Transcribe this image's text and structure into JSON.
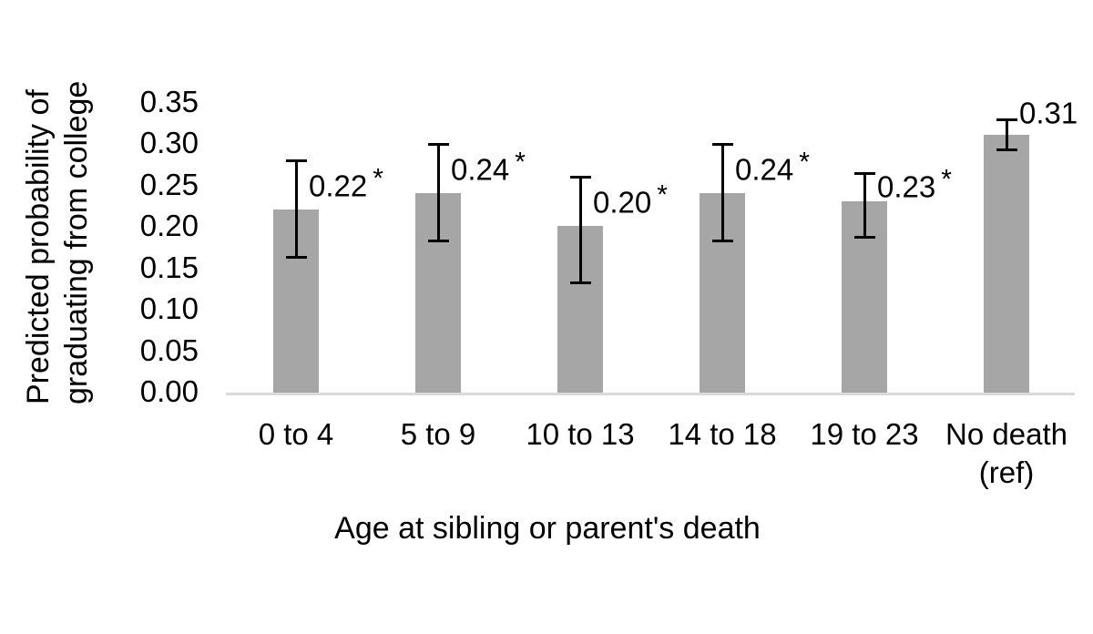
{
  "chart_data": {
    "type": "bar",
    "title": "",
    "xlabel": "Age at sibling or parent's death",
    "ylabel": "Predicted probability of graduating from college",
    "ylabel_lines": [
      "Predicted probability of",
      "graduating from college"
    ],
    "categories": [
      "0 to 4",
      "5 to 9",
      "10 to 13",
      "14 to 18",
      "19 to 23",
      "No death (ref)"
    ],
    "values": [
      0.22,
      0.24,
      0.2,
      0.24,
      0.23,
      0.31
    ],
    "value_labels": [
      "0.22",
      "0.24",
      "0.20",
      "0.24",
      "0.23",
      "0.31"
    ],
    "significance": [
      true,
      true,
      true,
      true,
      true,
      false
    ],
    "significance_marker": "*",
    "error_low": [
      0.16,
      0.18,
      0.13,
      0.18,
      0.185,
      0.29
    ],
    "error_high": [
      0.28,
      0.3,
      0.26,
      0.3,
      0.265,
      0.33
    ],
    "ytick_labels": [
      "0.00",
      "0.05",
      "0.10",
      "0.15",
      "0.20",
      "0.25",
      "0.30",
      "0.35"
    ],
    "ytick_values": [
      0.0,
      0.05,
      0.1,
      0.15,
      0.2,
      0.25,
      0.3,
      0.35
    ],
    "ylim": [
      0,
      0.35
    ],
    "grid": "off",
    "legend": "none",
    "bar_color": "#a6a6a6",
    "error_bar_color": "#000000",
    "axis_line_color": "#d9d9d9",
    "text_color": "#000000",
    "background_color": "#ffffff"
  }
}
